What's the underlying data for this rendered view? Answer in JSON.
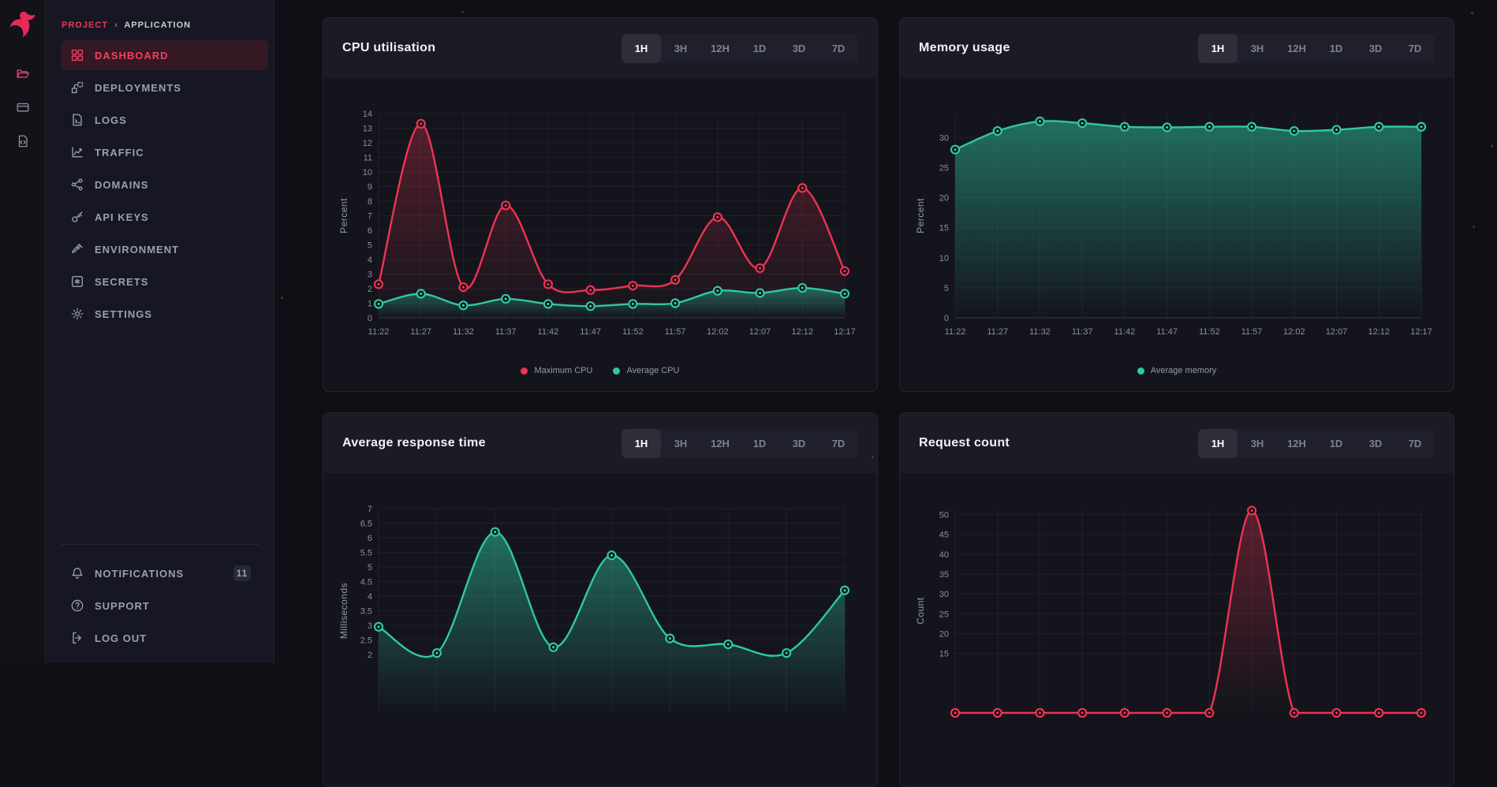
{
  "sidebar": {
    "breadcrumb": {
      "project": "PROJECT",
      "separator": "›",
      "application": "APPLICATION"
    },
    "nav_items": [
      {
        "label": "DASHBOARD",
        "icon": "dashboard-icon",
        "active": true
      },
      {
        "label": "DEPLOYMENTS",
        "icon": "deployments-icon",
        "active": false
      },
      {
        "label": "LOGS",
        "icon": "logs-icon",
        "active": false
      },
      {
        "label": "TRAFFIC",
        "icon": "traffic-icon",
        "active": false
      },
      {
        "label": "DOMAINS",
        "icon": "domains-icon",
        "active": false
      },
      {
        "label": "API KEYS",
        "icon": "api-keys-icon",
        "active": false
      },
      {
        "label": "ENVIRONMENT",
        "icon": "environment-icon",
        "active": false
      },
      {
        "label": "SECRETS",
        "icon": "secrets-icon",
        "active": false
      },
      {
        "label": "SETTINGS",
        "icon": "settings-icon",
        "active": false
      }
    ],
    "footer_items": [
      {
        "label": "NOTIFICATIONS",
        "icon": "bell-icon",
        "badge": "11"
      },
      {
        "label": "SUPPORT",
        "icon": "help-icon",
        "badge": null
      },
      {
        "label": "LOG OUT",
        "icon": "logout-icon",
        "badge": null
      }
    ]
  },
  "time_range_options": [
    "1H",
    "3H",
    "12H",
    "1D",
    "3D",
    "7D"
  ],
  "colors": {
    "red": "#ee3352",
    "teal": "#2fc9a2",
    "nav_active": "#ef4166"
  },
  "chart_data": [
    {
      "id": "cpu",
      "type": "line",
      "title": "CPU utilisation",
      "active_range": "1H",
      "ylabel": "Percent",
      "ylim": [
        0,
        14
      ],
      "y_ticks": [
        0,
        1,
        2,
        3,
        4,
        5,
        6,
        7,
        8,
        9,
        10,
        11,
        12,
        13,
        14
      ],
      "x_labels": [
        "11:22",
        "11:27",
        "11:32",
        "11:37",
        "11:42",
        "11:47",
        "11:52",
        "11:57",
        "12:02",
        "12:07",
        "12:12",
        "12:17"
      ],
      "series": [
        {
          "name": "Maximum CPU",
          "color": "#ee3352",
          "values": [
            2.3,
            13.3,
            2.1,
            7.7,
            2.3,
            1.9,
            2.2,
            2.6,
            6.9,
            3.4,
            8.9,
            3.2
          ]
        },
        {
          "name": "Average CPU",
          "color": "#2fc9a2",
          "values": [
            0.95,
            1.65,
            0.85,
            1.3,
            0.95,
            0.8,
            0.95,
            1.0,
            1.85,
            1.7,
            2.05,
            1.65
          ]
        }
      ],
      "show_legend": true
    },
    {
      "id": "memory",
      "type": "area",
      "title": "Memory usage",
      "active_range": "1H",
      "ylabel": "Percent",
      "ylim": [
        0,
        34
      ],
      "y_ticks": [
        0,
        5,
        10,
        15,
        20,
        25,
        30
      ],
      "x_labels": [
        "11:22",
        "11:27",
        "11:32",
        "11:37",
        "11:42",
        "11:47",
        "11:52",
        "11:57",
        "12:02",
        "12:07",
        "12:12",
        "12:17"
      ],
      "series": [
        {
          "name": "Average memory",
          "color": "#2fc9a2",
          "values": [
            28,
            31.1,
            32.7,
            32.4,
            31.8,
            31.7,
            31.8,
            31.8,
            31.1,
            31.3,
            31.8,
            31.8
          ]
        }
      ],
      "show_legend": true
    },
    {
      "id": "response",
      "type": "area",
      "title": "Average response time",
      "active_range": "1H",
      "ylabel": "Milliseconds",
      "ylim": [
        0,
        7
      ],
      "y_ticks": [
        2,
        2.5,
        3,
        3.5,
        4,
        4.5,
        5,
        5.5,
        6,
        6.5,
        7
      ],
      "x_labels": [],
      "series": [
        {
          "name": "",
          "color": "#2fc9a2",
          "values": [
            2.95,
            2.05,
            6.2,
            2.25,
            5.4,
            2.55,
            2.35,
            2.05,
            4.2
          ]
        }
      ],
      "show_legend": false
    },
    {
      "id": "requests",
      "type": "line",
      "title": "Request count",
      "active_range": "1H",
      "ylabel": "Count",
      "ylim": [
        0,
        51.5
      ],
      "y_ticks": [
        15,
        20,
        25,
        30,
        35,
        40,
        45,
        50
      ],
      "x_labels": [],
      "series": [
        {
          "name": "",
          "color": "#ee3352",
          "values": [
            0,
            0,
            0,
            0,
            0,
            0,
            0,
            51,
            0,
            0,
            0,
            0
          ]
        }
      ],
      "show_legend": false
    }
  ]
}
